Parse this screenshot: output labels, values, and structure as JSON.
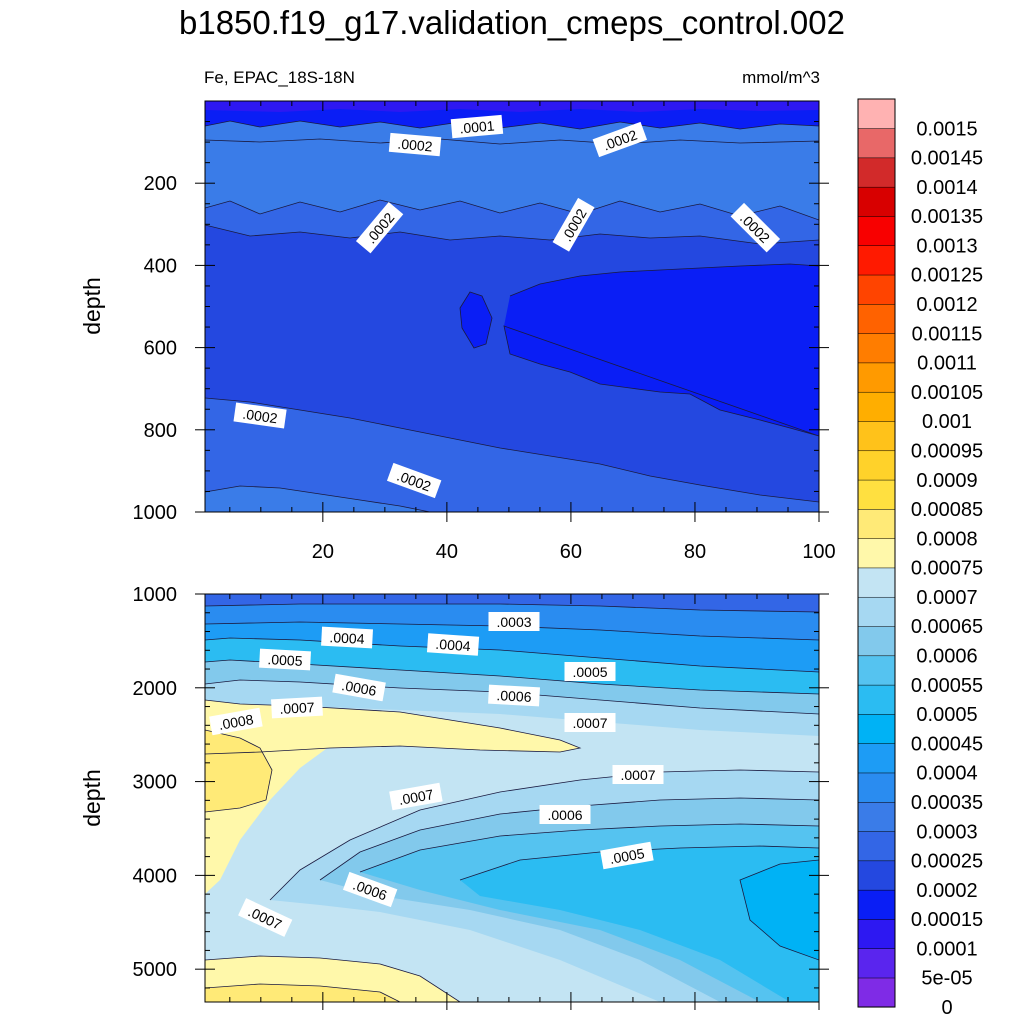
{
  "figure": {
    "title": "b1850.f19_g17.validation_cmeps_control.002",
    "subtitle_left": "Fe, EPAC_18S-18N",
    "subtitle_right": "mmol/m^3"
  },
  "colors": {
    "levels": [
      "#7F2BE6",
      "#5A25EE",
      "#2D18F2",
      "#0A1EF5",
      "#2448E0",
      "#3366E6",
      "#3A7CE8",
      "#2A8CF0",
      "#1D9CF5",
      "#00B2F5",
      "#2BBCF2",
      "#55C3F0",
      "#82C9EC",
      "#A6D8F2",
      "#C3E4F3",
      "#FFF8AA",
      "#FFEA77",
      "#FFE040",
      "#FFD22A",
      "#FFC21A",
      "#FFAE00",
      "#FF9A00",
      "#FF7D00",
      "#FF6200",
      "#FF4400",
      "#FF1A00",
      "#F80000",
      "#D80000",
      "#D22A2A",
      "#E86868",
      "#FFB2B2"
    ]
  },
  "colorbar": {
    "labels": [
      "0.0015",
      "0.00145",
      "0.0014",
      "0.00135",
      "0.0013",
      "0.00125",
      "0.0012",
      "0.00115",
      "0.0011",
      "0.00105",
      "0.001",
      "0.00095",
      "0.0009",
      "0.00085",
      "0.0008",
      "0.00075",
      "0.0007",
      "0.00065",
      "0.0006",
      "0.00055",
      "0.0005",
      "0.00045",
      "0.0004",
      "0.00035",
      "0.0003",
      "0.00025",
      "0.0002",
      "0.00015",
      "0.0001",
      "5e-05",
      "0"
    ]
  },
  "chart_data": [
    {
      "type": "heatmap",
      "panel": "upper",
      "xlabel": "",
      "ylabel": "depth",
      "xlim": [
        1,
        100
      ],
      "ylim": [
        1000,
        0
      ],
      "xticks": [
        "20",
        "40",
        "60",
        "80",
        "100"
      ],
      "yticks": [
        "200",
        "400",
        "600",
        "800",
        "1000"
      ],
      "grid": false,
      "colormap_levels": [
        0,
        5e-05,
        0.0001,
        0.00015,
        0.0002,
        0.00025
      ],
      "x": [
        1,
        20,
        40,
        60,
        80,
        100
      ],
      "y": [
        10,
        50,
        100,
        200,
        300,
        400,
        500,
        600,
        700,
        800,
        900,
        1000
      ],
      "z": [
        [
          0.0001,
          0.0001,
          0.0001,
          0.0001,
          0.0001,
          0.0001
        ],
        [
          0.00015,
          0.00015,
          0.00014,
          0.00015,
          0.00015,
          0.00015
        ],
        [
          0.00022,
          0.00022,
          0.00021,
          0.00021,
          0.00022,
          0.00021
        ],
        [
          0.00021,
          0.00022,
          0.00021,
          0.00022,
          0.00022,
          0.00021
        ],
        [
          0.00019,
          0.00019,
          0.00019,
          0.00019,
          0.00019,
          0.00019
        ],
        [
          0.00016,
          0.00016,
          0.00016,
          0.00016,
          0.00015,
          0.00014
        ],
        [
          0.00016,
          0.00016,
          0.00015,
          0.00014,
          0.00014,
          0.00014
        ],
        [
          0.00016,
          0.00016,
          0.00016,
          0.00015,
          0.00014,
          0.00014
        ],
        [
          0.00017,
          0.00016,
          0.00016,
          0.00016,
          0.00015,
          0.00014
        ],
        [
          0.0002,
          0.00018,
          0.00017,
          0.00016,
          0.00016,
          0.00015
        ],
        [
          0.00021,
          0.0002,
          0.00019,
          0.00017,
          0.00016,
          0.00016
        ],
        [
          0.00023,
          0.00021,
          0.0002,
          0.00019,
          0.00018,
          0.00017
        ]
      ],
      "contour_labels": [
        ".0001",
        ".0002",
        ".0002",
        ".0002",
        ".0002",
        ".0002",
        ".0002",
        ".0002"
      ]
    },
    {
      "type": "heatmap",
      "panel": "lower",
      "xlabel": "",
      "ylabel": "depth",
      "xlim": [
        1,
        100
      ],
      "ylim": [
        5350,
        1000
      ],
      "xticks": [],
      "yticks": [
        "1000",
        "2000",
        "3000",
        "4000",
        "5000"
      ],
      "grid": false,
      "colormap_levels": [
        0.0002,
        0.00025,
        0.0003,
        0.00035,
        0.0004,
        0.00045,
        0.0005,
        0.00055,
        0.0006,
        0.00065,
        0.0007,
        0.00075,
        0.0008,
        0.00085
      ],
      "x": [
        1,
        20,
        40,
        60,
        80,
        100
      ],
      "y": [
        1000,
        1500,
        2000,
        2500,
        3000,
        3500,
        4000,
        4500,
        5000,
        5350
      ],
      "z": [
        [
          0.00025,
          0.00025,
          0.00024,
          0.00023,
          0.00022,
          0.00022
        ],
        [
          0.00044,
          0.00042,
          0.0004,
          0.00039,
          0.00037,
          0.00035
        ],
        [
          0.00066,
          0.00063,
          0.00061,
          0.00059,
          0.00056,
          0.00054
        ],
        [
          0.00082,
          0.00078,
          0.00075,
          0.00074,
          0.00069,
          0.00067
        ],
        [
          0.00085,
          0.00078,
          0.00071,
          0.00069,
          0.00066,
          0.00065
        ],
        [
          0.00082,
          0.00072,
          0.00064,
          0.0006,
          0.00058,
          0.00058
        ],
        [
          0.00076,
          0.00067,
          0.0006,
          0.00055,
          0.00053,
          0.00052
        ],
        [
          0.00072,
          0.00069,
          0.00064,
          0.00059,
          0.00055,
          0.00053
        ],
        [
          0.00076,
          0.00075,
          0.00071,
          0.00065,
          0.0006,
          0.00057
        ],
        [
          0.0008,
          0.00079,
          0.00074,
          0.00069,
          0.00064,
          0.0006
        ]
      ],
      "contour_labels": [
        ".0003",
        ".0004",
        ".0004",
        ".0005",
        ".0005",
        ".0006",
        ".0006",
        ".0007",
        ".0007",
        ".0008",
        ".0007",
        ".0007",
        ".0006",
        ".0005",
        ".0006",
        ".0007"
      ]
    }
  ]
}
